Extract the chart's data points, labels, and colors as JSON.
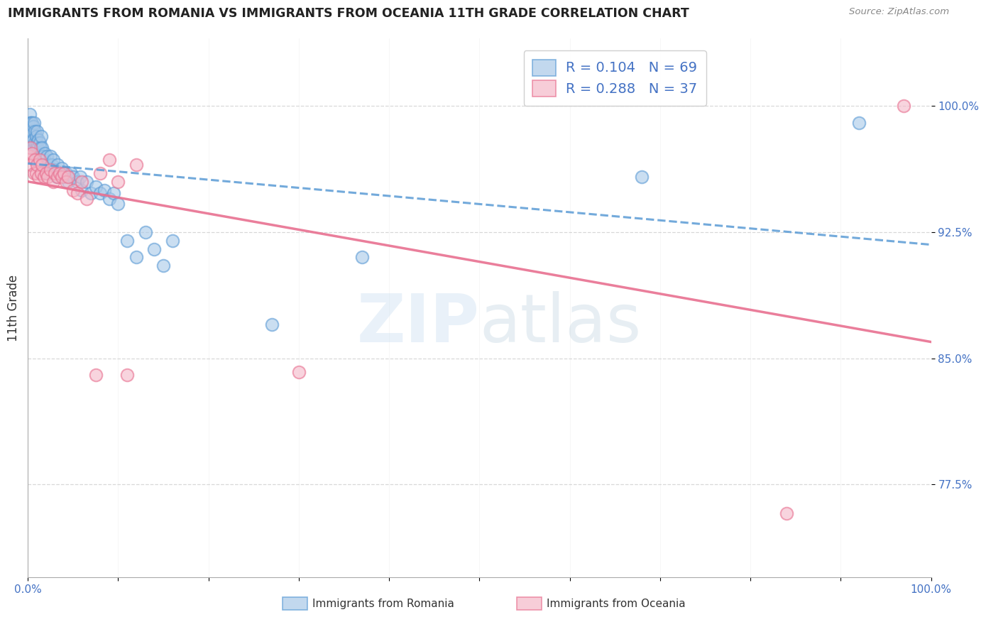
{
  "title": "IMMIGRANTS FROM ROMANIA VS IMMIGRANTS FROM OCEANIA 11TH GRADE CORRELATION CHART",
  "source": "Source: ZipAtlas.com",
  "ylabel": "11th Grade",
  "ytick_labels": [
    "100.0%",
    "92.5%",
    "85.0%",
    "77.5%"
  ],
  "ytick_vals": [
    1.0,
    0.925,
    0.85,
    0.775
  ],
  "legend_romania": "Immigrants from Romania",
  "legend_oceania": "Immigrants from Oceania",
  "R_romania": 0.104,
  "N_romania": 69,
  "R_oceania": 0.288,
  "N_oceania": 37,
  "color_romania": "#a8c8e8",
  "color_oceania": "#f4b8c8",
  "color_romania_edge": "#5b9bd5",
  "color_oceania_edge": "#e87090",
  "color_romania_line": "#5b9bd5",
  "color_oceania_line": "#e87090",
  "xlim": [
    0.0,
    1.0
  ],
  "ylim": [
    0.72,
    1.04
  ],
  "romania_x": [
    0.001,
    0.002,
    0.003,
    0.003,
    0.004,
    0.004,
    0.005,
    0.005,
    0.006,
    0.006,
    0.007,
    0.007,
    0.008,
    0.008,
    0.009,
    0.009,
    0.01,
    0.01,
    0.011,
    0.011,
    0.012,
    0.012,
    0.013,
    0.013,
    0.014,
    0.015,
    0.015,
    0.016,
    0.017,
    0.018,
    0.019,
    0.02,
    0.021,
    0.022,
    0.023,
    0.025,
    0.027,
    0.028,
    0.03,
    0.032,
    0.033,
    0.035,
    0.038,
    0.04,
    0.042,
    0.045,
    0.048,
    0.05,
    0.055,
    0.058,
    0.06,
    0.065,
    0.07,
    0.075,
    0.08,
    0.085,
    0.09,
    0.095,
    0.1,
    0.11,
    0.12,
    0.13,
    0.14,
    0.15,
    0.16,
    0.27,
    0.37,
    0.68,
    0.92
  ],
  "romania_y": [
    0.99,
    0.995,
    0.99,
    0.985,
    0.99,
    0.98,
    0.99,
    0.985,
    0.988,
    0.98,
    0.99,
    0.975,
    0.985,
    0.978,
    0.982,
    0.975,
    0.985,
    0.978,
    0.975,
    0.97,
    0.98,
    0.972,
    0.978,
    0.968,
    0.975,
    0.982,
    0.97,
    0.975,
    0.97,
    0.968,
    0.972,
    0.965,
    0.97,
    0.965,
    0.96,
    0.97,
    0.965,
    0.968,
    0.962,
    0.958,
    0.965,
    0.96,
    0.963,
    0.958,
    0.96,
    0.955,
    0.96,
    0.958,
    0.955,
    0.958,
    0.95,
    0.955,
    0.948,
    0.952,
    0.948,
    0.95,
    0.945,
    0.948,
    0.942,
    0.92,
    0.91,
    0.925,
    0.915,
    0.905,
    0.92,
    0.87,
    0.91,
    0.958,
    0.99
  ],
  "oceania_x": [
    0.002,
    0.003,
    0.004,
    0.005,
    0.007,
    0.008,
    0.009,
    0.01,
    0.012,
    0.013,
    0.015,
    0.016,
    0.018,
    0.02,
    0.022,
    0.025,
    0.028,
    0.03,
    0.033,
    0.035,
    0.038,
    0.04,
    0.042,
    0.045,
    0.05,
    0.055,
    0.06,
    0.065,
    0.075,
    0.08,
    0.09,
    0.1,
    0.11,
    0.12,
    0.3,
    0.84,
    0.97
  ],
  "oceania_y": [
    0.97,
    0.975,
    0.965,
    0.972,
    0.96,
    0.968,
    0.96,
    0.965,
    0.958,
    0.968,
    0.96,
    0.965,
    0.958,
    0.96,
    0.958,
    0.962,
    0.955,
    0.96,
    0.958,
    0.96,
    0.958,
    0.96,
    0.955,
    0.958,
    0.95,
    0.948,
    0.955,
    0.945,
    0.84,
    0.96,
    0.968,
    0.955,
    0.84,
    0.965,
    0.842,
    0.758,
    1.0
  ],
  "watermark_zip": "ZIP",
  "watermark_atlas": "atlas",
  "background_color": "#ffffff"
}
